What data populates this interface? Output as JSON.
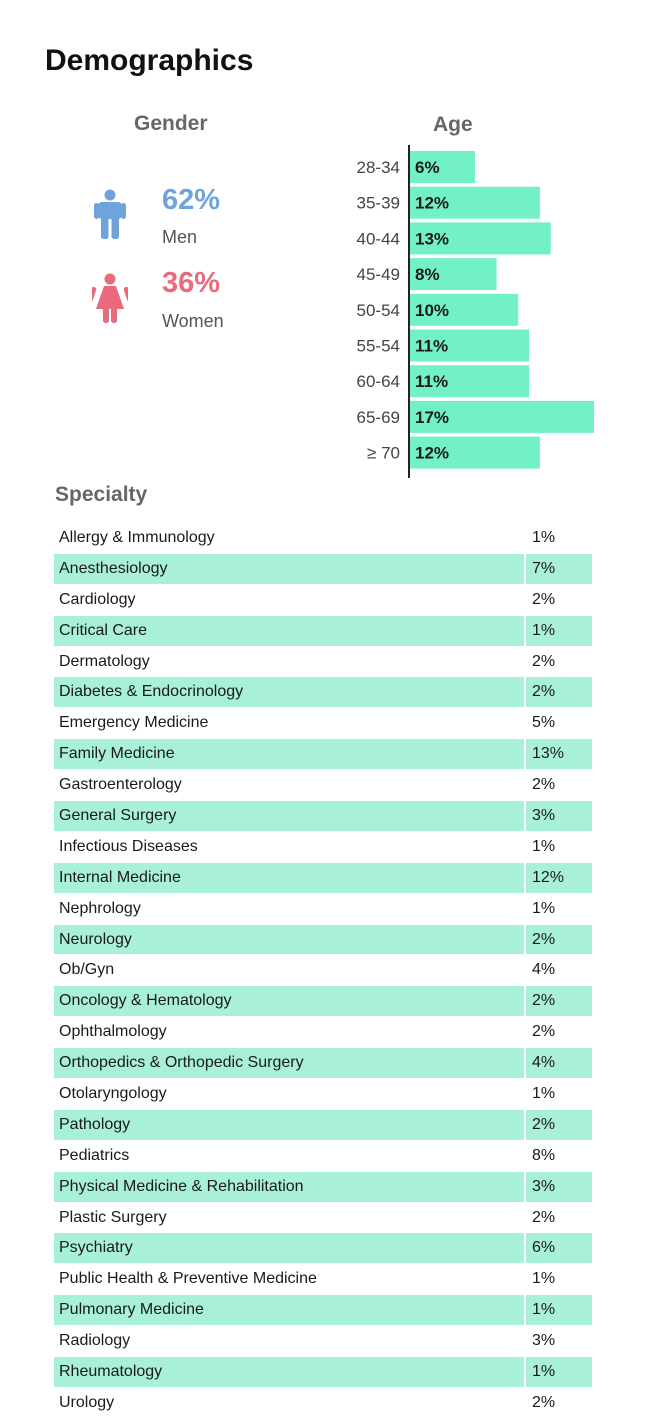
{
  "title": "Demographics",
  "gender": {
    "label": "Gender",
    "men": {
      "pct": "62%",
      "caption": "Men",
      "color": "#6fa3dc",
      "icon": "male-person-icon"
    },
    "women": {
      "pct": "36%",
      "caption": "Women",
      "color": "#e86a7c",
      "icon": "female-person-icon"
    }
  },
  "age": {
    "label": "Age",
    "bar_color": "#72f0c6"
  },
  "specialty": {
    "label": "Specialty",
    "row_shade_color": "#a8f0d6",
    "rows": [
      {
        "name": "Allergy & Immunology",
        "value": "1%"
      },
      {
        "name": "Anesthesiology",
        "value": "7%"
      },
      {
        "name": "Cardiology",
        "value": "2%"
      },
      {
        "name": "Critical Care",
        "value": "1%"
      },
      {
        "name": "Dermatology",
        "value": "2%"
      },
      {
        "name": "Diabetes & Endocrinology",
        "value": "2%"
      },
      {
        "name": "Emergency Medicine",
        "value": "5%"
      },
      {
        "name": "Family Medicine",
        "value": "13%"
      },
      {
        "name": "Gastroenterology",
        "value": "2%"
      },
      {
        "name": "General Surgery",
        "value": "3%"
      },
      {
        "name": "Infectious Diseases",
        "value": "1%"
      },
      {
        "name": "Internal Medicine",
        "value": "12%"
      },
      {
        "name": "Nephrology",
        "value": "1%"
      },
      {
        "name": "Neurology",
        "value": "2%"
      },
      {
        "name": "Ob/Gyn",
        "value": "4%"
      },
      {
        "name": "Oncology & Hematology",
        "value": "2%"
      },
      {
        "name": "Ophthalmology",
        "value": "2%"
      },
      {
        "name": "Orthopedics & Orthopedic Surgery",
        "value": "4%"
      },
      {
        "name": "Otolaryngology",
        "value": "1%"
      },
      {
        "name": "Pathology",
        "value": "2%"
      },
      {
        "name": "Pediatrics",
        "value": "8%"
      },
      {
        "name": "Physical Medicine & Rehabilitation",
        "value": "3%"
      },
      {
        "name": "Plastic Surgery",
        "value": "2%"
      },
      {
        "name": "Psychiatry",
        "value": "6%"
      },
      {
        "name": "Public Health & Preventive Medicine",
        "value": "1%"
      },
      {
        "name": "Pulmonary Medicine",
        "value": "1%"
      },
      {
        "name": "Radiology",
        "value": "3%"
      },
      {
        "name": "Rheumatology",
        "value": "1%"
      },
      {
        "name": "Urology",
        "value": "2%"
      }
    ]
  },
  "chart_data": {
    "type": "bar",
    "orientation": "horizontal",
    "title": "Age",
    "categories": [
      "28-34",
      "35-39",
      "40-44",
      "45-49",
      "50-54",
      "55-54",
      "60-64",
      "65-69",
      "≥ 70"
    ],
    "values": [
      6,
      12,
      13,
      8,
      10,
      11,
      11,
      17,
      12
    ],
    "value_labels": [
      "6%",
      "12%",
      "13%",
      "8%",
      "10%",
      "11%",
      "11%",
      "17%",
      "12%"
    ],
    "unit": "%",
    "xlim": [
      0,
      17
    ],
    "grid": false,
    "legend": "none"
  }
}
